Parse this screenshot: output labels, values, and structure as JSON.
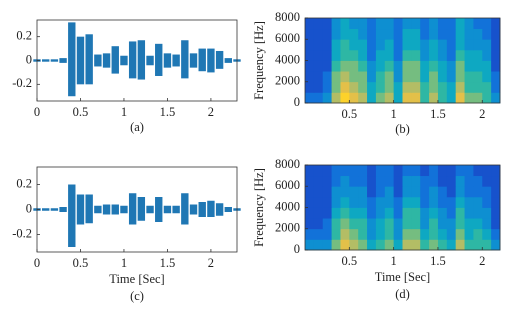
{
  "chart_data": [
    {
      "type": "waveform",
      "caption": "(a)",
      "color": "#1f77b4",
      "x": [
        0,
        0.1,
        0.2,
        0.3,
        0.4,
        0.5,
        0.6,
        0.7,
        0.8,
        0.9,
        1,
        1.1,
        1.2,
        1.3,
        1.4,
        1.5,
        1.6,
        1.7,
        1.8,
        1.9,
        2,
        2.1,
        2.2,
        2.3
      ],
      "upper": [
        0.01,
        0.01,
        0.01,
        0.02,
        0.32,
        0.2,
        0.22,
        0.05,
        0.06,
        0.12,
        0.04,
        0.16,
        0.17,
        0.04,
        0.14,
        0.06,
        0.05,
        0.17,
        0.06,
        0.1,
        0.1,
        0.08,
        0.02,
        0.01
      ],
      "lower": [
        -0.01,
        -0.01,
        -0.01,
        -0.02,
        -0.3,
        -0.2,
        -0.2,
        -0.05,
        -0.06,
        -0.11,
        -0.04,
        -0.15,
        -0.16,
        -0.04,
        -0.13,
        -0.06,
        -0.05,
        -0.15,
        -0.06,
        -0.09,
        -0.1,
        -0.07,
        -0.02,
        -0.01
      ],
      "xlim": [
        0,
        2.3
      ],
      "ylim": [
        -0.34,
        0.34
      ],
      "xticks": [
        0,
        0.5,
        1,
        1.5,
        2
      ],
      "yticks": [
        -0.2,
        0,
        0.2
      ]
    },
    {
      "type": "heatmap",
      "caption": "(b)",
      "ylabel": "Frequency [Hz]",
      "colormap": [
        "#352a87",
        "#0f5cdd",
        "#1481d6",
        "#06a4ca",
        "#2eb7a4",
        "#87bf77",
        "#d1bb59",
        "#fec832",
        "#f9fb0e"
      ],
      "clim": [
        0,
        1
      ],
      "x_edges": [
        0,
        0.1,
        0.2,
        0.3,
        0.4,
        0.5,
        0.6,
        0.7,
        0.8,
        0.9,
        1,
        1.1,
        1.2,
        1.3,
        1.4,
        1.5,
        1.6,
        1.7,
        1.8,
        1.9,
        2,
        2.1,
        2.2
      ],
      "y_edges": [
        0,
        1000,
        2000,
        3000,
        4000,
        5000,
        6000,
        7000,
        8000
      ],
      "z": [
        [
          0.2,
          0.2,
          0.3,
          0.7,
          0.9,
          0.8,
          0.7,
          0.4,
          0.6,
          0.7,
          0.4,
          0.8,
          0.8,
          0.5,
          0.7,
          0.5,
          0.4,
          0.8,
          0.6,
          0.6,
          0.5,
          0.3
        ],
        [
          0.1,
          0.1,
          0.2,
          0.6,
          0.8,
          0.7,
          0.6,
          0.4,
          0.5,
          0.6,
          0.4,
          0.7,
          0.7,
          0.5,
          0.6,
          0.5,
          0.4,
          0.7,
          0.5,
          0.5,
          0.5,
          0.2
        ],
        [
          0.1,
          0.1,
          0.2,
          0.6,
          0.7,
          0.6,
          0.6,
          0.3,
          0.5,
          0.6,
          0.3,
          0.6,
          0.6,
          0.4,
          0.6,
          0.4,
          0.3,
          0.6,
          0.5,
          0.5,
          0.4,
          0.2
        ],
        [
          0.1,
          0.1,
          0.1,
          0.5,
          0.6,
          0.6,
          0.5,
          0.3,
          0.4,
          0.5,
          0.3,
          0.6,
          0.6,
          0.4,
          0.5,
          0.4,
          0.3,
          0.6,
          0.4,
          0.4,
          0.4,
          0.1
        ],
        [
          0.1,
          0.1,
          0.1,
          0.4,
          0.5,
          0.5,
          0.4,
          0.2,
          0.4,
          0.4,
          0.2,
          0.5,
          0.5,
          0.3,
          0.4,
          0.3,
          0.2,
          0.5,
          0.4,
          0.4,
          0.3,
          0.1
        ],
        [
          0.1,
          0.1,
          0.1,
          0.4,
          0.5,
          0.4,
          0.4,
          0.2,
          0.3,
          0.4,
          0.2,
          0.4,
          0.4,
          0.3,
          0.4,
          0.3,
          0.2,
          0.4,
          0.3,
          0.3,
          0.3,
          0.1
        ],
        [
          0.1,
          0.1,
          0.1,
          0.3,
          0.4,
          0.4,
          0.3,
          0.2,
          0.3,
          0.3,
          0.2,
          0.4,
          0.4,
          0.2,
          0.3,
          0.2,
          0.2,
          0.4,
          0.3,
          0.3,
          0.2,
          0.1
        ],
        [
          0.1,
          0.1,
          0.1,
          0.3,
          0.4,
          0.3,
          0.3,
          0.2,
          0.3,
          0.3,
          0.2,
          0.3,
          0.3,
          0.2,
          0.3,
          0.2,
          0.2,
          0.4,
          0.3,
          0.2,
          0.2,
          0.1
        ]
      ],
      "xlim": [
        0,
        2.2
      ],
      "ylim": [
        0,
        8000
      ],
      "xticks": [
        0.5,
        1,
        1.5,
        2
      ],
      "yticks": [
        0,
        2000,
        4000,
        6000,
        8000
      ]
    },
    {
      "type": "waveform",
      "caption": "(c)",
      "xlabel": "Time [Sec]",
      "color": "#1f77b4",
      "x": [
        0,
        0.1,
        0.2,
        0.3,
        0.4,
        0.5,
        0.6,
        0.7,
        0.8,
        0.9,
        1,
        1.1,
        1.2,
        1.3,
        1.4,
        1.5,
        1.6,
        1.7,
        1.8,
        1.9,
        2,
        2.1,
        2.2,
        2.3
      ],
      "upper": [
        0.01,
        0.01,
        0.01,
        0.02,
        0.2,
        0.12,
        0.12,
        0.03,
        0.04,
        0.04,
        0.03,
        0.13,
        0.1,
        0.03,
        0.1,
        0.03,
        0.03,
        0.13,
        0.04,
        0.06,
        0.07,
        0.05,
        0.02,
        0.01
      ],
      "lower": [
        -0.01,
        -0.01,
        -0.01,
        -0.02,
        -0.3,
        -0.12,
        -0.11,
        -0.03,
        -0.04,
        -0.04,
        -0.03,
        -0.12,
        -0.09,
        -0.03,
        -0.1,
        -0.03,
        -0.03,
        -0.12,
        -0.04,
        -0.06,
        -0.06,
        -0.05,
        -0.02,
        -0.01
      ],
      "xlim": [
        0,
        2.3
      ],
      "ylim": [
        -0.34,
        0.34
      ],
      "xticks": [
        0,
        0.5,
        1,
        1.5,
        2
      ],
      "yticks": [
        -0.2,
        0,
        0.2
      ]
    },
    {
      "type": "heatmap",
      "caption": "(d)",
      "xlabel": "Time [Sec]",
      "ylabel": "Frequency [Hz]",
      "colormap": [
        "#352a87",
        "#0f5cdd",
        "#1481d6",
        "#06a4ca",
        "#2eb7a4",
        "#87bf77",
        "#d1bb59",
        "#fec832",
        "#f9fb0e"
      ],
      "clim": [
        0,
        1
      ],
      "x_edges": [
        0,
        0.1,
        0.2,
        0.3,
        0.4,
        0.5,
        0.6,
        0.7,
        0.8,
        0.9,
        1,
        1.1,
        1.2,
        1.3,
        1.4,
        1.5,
        1.6,
        1.7,
        1.8,
        1.9,
        2,
        2.1,
        2.2
      ],
      "y_edges": [
        0,
        1000,
        2000,
        3000,
        4000,
        5000,
        6000,
        7000,
        8000
      ],
      "z": [
        [
          0.3,
          0.3,
          0.3,
          0.6,
          0.8,
          0.7,
          0.6,
          0.4,
          0.5,
          0.6,
          0.4,
          0.7,
          0.7,
          0.5,
          0.6,
          0.5,
          0.4,
          0.7,
          0.5,
          0.5,
          0.5,
          0.3
        ],
        [
          0.2,
          0.2,
          0.2,
          0.5,
          0.7,
          0.6,
          0.5,
          0.3,
          0.4,
          0.5,
          0.3,
          0.6,
          0.6,
          0.4,
          0.5,
          0.4,
          0.3,
          0.6,
          0.4,
          0.5,
          0.4,
          0.2
        ],
        [
          0.1,
          0.1,
          0.2,
          0.5,
          0.6,
          0.5,
          0.5,
          0.3,
          0.4,
          0.5,
          0.3,
          0.5,
          0.5,
          0.3,
          0.5,
          0.3,
          0.3,
          0.5,
          0.4,
          0.4,
          0.3,
          0.1
        ],
        [
          0.1,
          0.1,
          0.1,
          0.4,
          0.5,
          0.4,
          0.4,
          0.2,
          0.3,
          0.4,
          0.2,
          0.5,
          0.5,
          0.3,
          0.4,
          0.3,
          0.2,
          0.5,
          0.3,
          0.3,
          0.3,
          0.1
        ],
        [
          0.1,
          0.1,
          0.1,
          0.3,
          0.4,
          0.3,
          0.3,
          0.2,
          0.3,
          0.3,
          0.2,
          0.4,
          0.4,
          0.2,
          0.3,
          0.2,
          0.2,
          0.4,
          0.3,
          0.3,
          0.2,
          0.1
        ],
        [
          0.1,
          0.1,
          0.1,
          0.3,
          0.3,
          0.3,
          0.3,
          0.1,
          0.2,
          0.3,
          0.1,
          0.3,
          0.3,
          0.2,
          0.3,
          0.2,
          0.1,
          0.3,
          0.2,
          0.2,
          0.2,
          0.1
        ],
        [
          0.1,
          0.1,
          0.1,
          0.2,
          0.3,
          0.2,
          0.2,
          0.1,
          0.2,
          0.2,
          0.1,
          0.3,
          0.3,
          0.2,
          0.2,
          0.1,
          0.1,
          0.3,
          0.2,
          0.2,
          0.1,
          0.1
        ],
        [
          0.1,
          0.1,
          0.1,
          0.2,
          0.2,
          0.2,
          0.2,
          0.1,
          0.2,
          0.2,
          0.1,
          0.2,
          0.2,
          0.1,
          0.2,
          0.1,
          0.1,
          0.2,
          0.2,
          0.1,
          0.1,
          0.1
        ]
      ],
      "xlim": [
        0,
        2.2
      ],
      "ylim": [
        0,
        8000
      ],
      "xticks": [
        0.5,
        1,
        1.5,
        2
      ],
      "yticks": [
        0,
        2000,
        4000,
        6000,
        8000
      ]
    }
  ]
}
